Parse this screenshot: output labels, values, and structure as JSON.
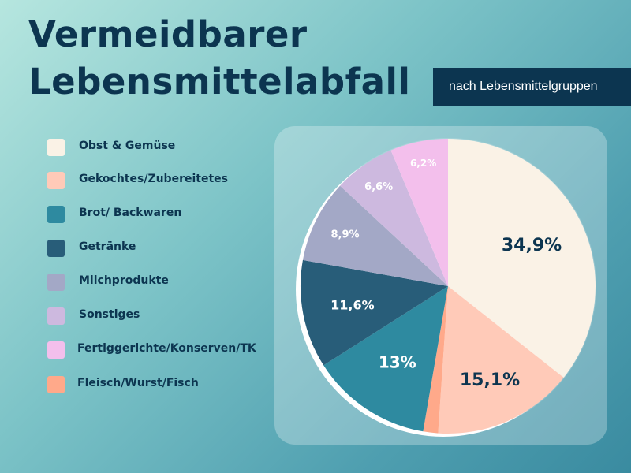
{
  "title_line1": "Vermeidbarer",
  "title_line2": "Lebensmittelabfall",
  "subtitle": "nach Lebensmittelgruppen",
  "chart_data": {
    "type": "pie",
    "slices": [
      {
        "name": "Obst & Gemüse",
        "value": 34.9,
        "label": "34,9%",
        "color": "#faf2e6",
        "text_color": "#0c3550"
      },
      {
        "name": "Gekochtes/Zubereitetes",
        "value": 15.1,
        "label": "15,1%",
        "color": "#ffcab8",
        "text_color": "#0c3550"
      },
      {
        "name": "Fleisch/Wurst/Fisch",
        "value": 1.6,
        "label": "",
        "color": "#ffa98a",
        "text_color": "#0c3550"
      },
      {
        "name": "Brot/ Backwaren",
        "value": 13.0,
        "label": "13%",
        "color": "#2e8aa0",
        "text_color": "#ffffff"
      },
      {
        "name": "Getränke",
        "value": 11.6,
        "label": "11,6%",
        "color": "#285d79",
        "text_color": "#ffffff"
      },
      {
        "name": "Milchprodukte",
        "value": 8.9,
        "label": "8,9%",
        "color": "#a3a8c6",
        "text_color": "#ffffff"
      },
      {
        "name": "Sonstiges",
        "value": 6.6,
        "label": "6,6%",
        "color": "#cdb9df",
        "text_color": "#ffffff"
      },
      {
        "name": "Fertiggerichte/Konserven/TK",
        "value": 6.2,
        "label": "6,2%",
        "color": "#f3bfec",
        "text_color": "#ffffff"
      }
    ]
  },
  "legend": [
    {
      "label": "Obst & Gemüse",
      "color": "#faf2e6"
    },
    {
      "label": "Gekochtes/Zubereitetes",
      "color": "#ffcab8"
    },
    {
      "label": "Brot/ Backwaren",
      "color": "#2e8aa0"
    },
    {
      "label": "Getränke",
      "color": "#285d79"
    },
    {
      "label": "Milchprodukte",
      "color": "#a3a8c6"
    },
    {
      "label": "Sonstiges",
      "color": "#cdb9df"
    },
    {
      "label": "Fertiggerichte/Konserven/TK",
      "color": "#f3bfec"
    },
    {
      "label": "Fleisch/Wurst/Fisch",
      "color": "#ffa98a"
    }
  ]
}
